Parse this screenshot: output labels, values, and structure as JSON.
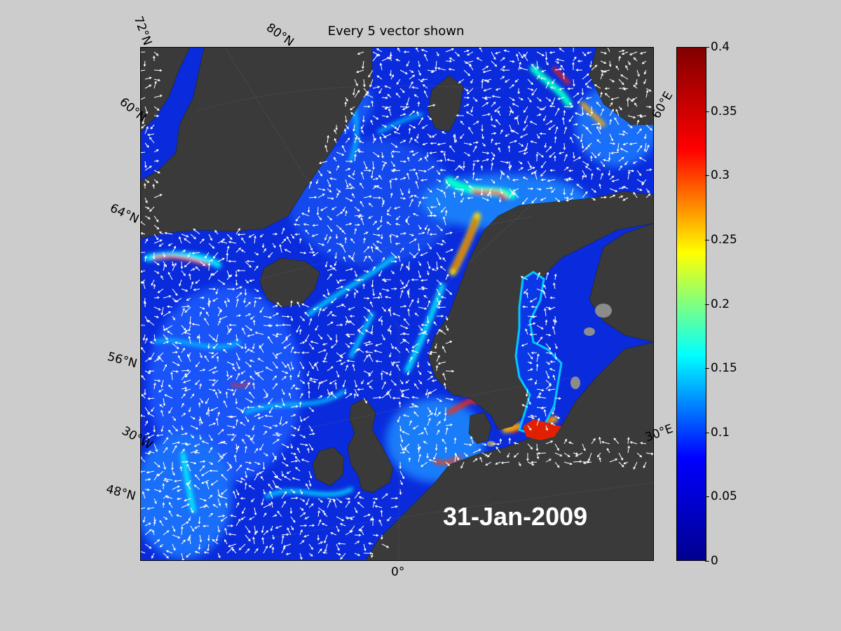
{
  "title": "Every 5 vector shown",
  "date_label": "31-Jan-2009",
  "lat_labels": [
    "72°N",
    "60°N",
    "64°N",
    "56°N",
    "48°N"
  ],
  "lon_labels": [
    "80°N",
    "60°E",
    "30°W",
    "30°E",
    "0°"
  ],
  "colorbar": {
    "colormap": "jet",
    "range": [
      0,
      0.4
    ],
    "ticks": [
      "0",
      "0.05",
      "0.1",
      "0.15",
      "0.2",
      "0.25",
      "0.3",
      "0.35",
      "0.4"
    ],
    "colors": [
      "#00008f",
      "#0000ff",
      "#00ffff",
      "#ffff00",
      "#ff0000",
      "#800000"
    ]
  },
  "colors": {
    "background": "#cccccc",
    "land": "#3a3a3a",
    "ocean_low": "#0a2bdc",
    "vectors": "#ffffff"
  }
}
